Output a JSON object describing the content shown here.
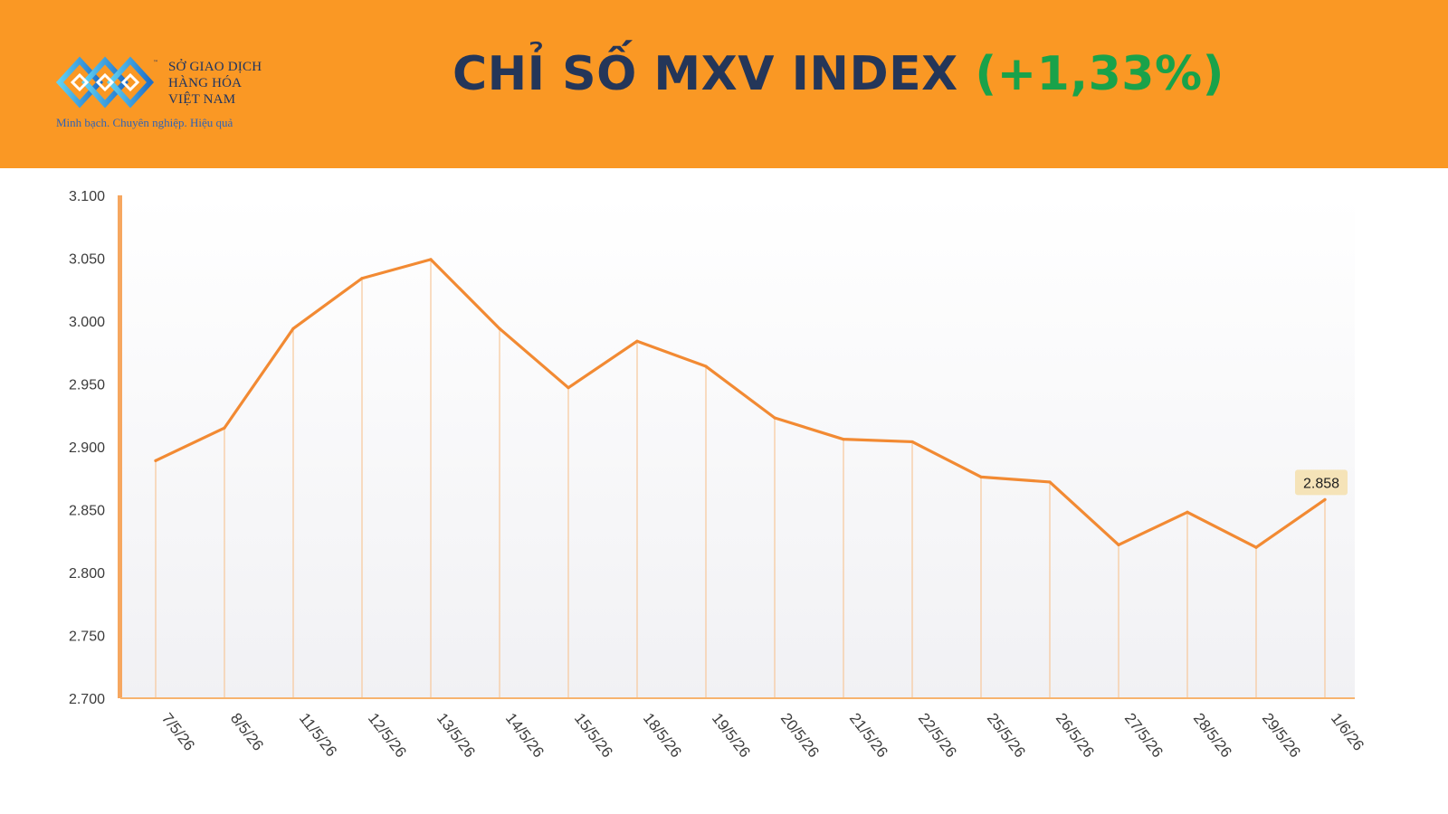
{
  "header": {
    "logo_line1": "SỞ GIAO DỊCH",
    "logo_line2": "HÀNG HÓA",
    "logo_line3": "VIỆT NAM",
    "logo_tagline": "Minh bạch. Chuyên nghiệp. Hiệu quả",
    "title": "CHỈ SỐ MXV INDEX",
    "change": "(+1,33%)"
  },
  "colors": {
    "header_bg": "#fa9824",
    "title": "#243659",
    "change": "#19a24a",
    "line": "#f28a33",
    "drop_line": "#f7c79a",
    "label_bg": "#f5e3b8"
  },
  "chart_data": {
    "type": "line",
    "categories": [
      "7/5/26",
      "8/5/26",
      "11/5/26",
      "12/5/26",
      "13/5/26",
      "14/5/26",
      "15/5/26",
      "18/5/26",
      "19/5/26",
      "20/5/26",
      "21/5/26",
      "22/5/26",
      "25/5/26",
      "26/5/26",
      "27/5/26",
      "28/5/26",
      "29/5/26",
      "1/6/26"
    ],
    "values": [
      2889,
      2915,
      2994,
      3034,
      3049,
      2994,
      2947,
      2984,
      2964,
      2923,
      2906,
      2904,
      2876,
      2872,
      2822,
      2848,
      2820,
      2858
    ],
    "yticks": [
      "3.100",
      "3.050",
      "3.000",
      "2.950",
      "2.900",
      "2.850",
      "2.800",
      "2.750",
      "2.700"
    ],
    "ylim": [
      2700,
      3100
    ],
    "last_label": "2.858",
    "grid": false,
    "drop_lines": true,
    "legend": "none"
  }
}
